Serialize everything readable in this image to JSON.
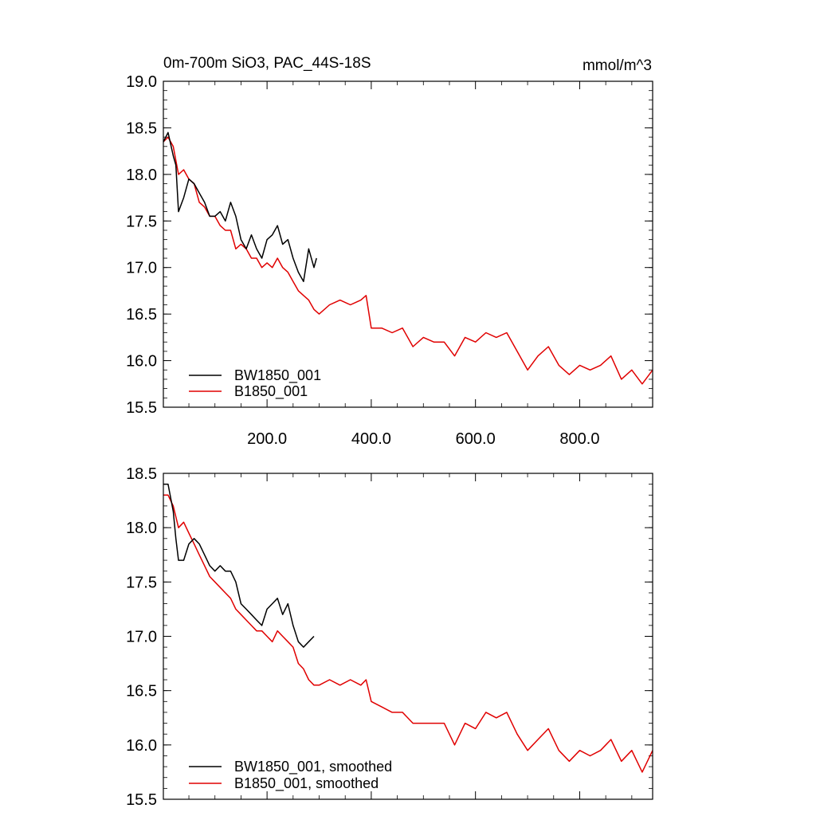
{
  "chart_data": [
    {
      "type": "line",
      "title": "0m-700m SiO3, PAC_44S-18S",
      "units": "mmol/m^3",
      "xlim": [
        1,
        940
      ],
      "ylim": [
        15.5,
        19.0
      ],
      "xticks": [
        200,
        400,
        600,
        800
      ],
      "xtick_labels": [
        "200.0",
        "400.0",
        "600.0",
        "800.0"
      ],
      "yticks": [
        15.5,
        16.0,
        16.5,
        17.0,
        17.5,
        18.0,
        18.5,
        19.0
      ],
      "ytick_labels": [
        "15.5",
        "16.0",
        "16.5",
        "17.0",
        "17.5",
        "18.0",
        "18.5",
        "19.0"
      ],
      "legend_placement": "lower-left",
      "series": [
        {
          "name": "BW1850_001",
          "color": "#000000",
          "x": [
            1,
            10,
            20,
            25,
            30,
            40,
            50,
            60,
            70,
            80,
            90,
            100,
            110,
            120,
            130,
            140,
            150,
            160,
            170,
            180,
            190,
            200,
            210,
            220,
            230,
            240,
            250,
            260,
            270,
            280,
            290,
            295
          ],
          "y": [
            18.35,
            18.45,
            18.2,
            18.1,
            17.6,
            17.75,
            17.95,
            17.9,
            17.8,
            17.7,
            17.55,
            17.55,
            17.6,
            17.5,
            17.7,
            17.55,
            17.3,
            17.2,
            17.35,
            17.2,
            17.1,
            17.3,
            17.35,
            17.45,
            17.25,
            17.3,
            17.1,
            16.95,
            16.85,
            17.2,
            17.0,
            17.1
          ]
        },
        {
          "name": "B1850_001",
          "color": "#e00000",
          "x": [
            1,
            10,
            20,
            30,
            40,
            50,
            60,
            70,
            80,
            90,
            100,
            110,
            120,
            130,
            140,
            150,
            160,
            170,
            180,
            190,
            200,
            210,
            220,
            230,
            240,
            250,
            260,
            270,
            280,
            290,
            300,
            320,
            340,
            360,
            380,
            390,
            400,
            420,
            440,
            460,
            480,
            500,
            520,
            540,
            560,
            580,
            600,
            620,
            640,
            660,
            680,
            700,
            720,
            740,
            760,
            780,
            800,
            820,
            840,
            860,
            880,
            900,
            920,
            940
          ],
          "y": [
            18.35,
            18.4,
            18.3,
            18.0,
            18.05,
            17.95,
            17.9,
            17.7,
            17.65,
            17.55,
            17.55,
            17.45,
            17.4,
            17.4,
            17.2,
            17.25,
            17.2,
            17.1,
            17.1,
            17.0,
            17.05,
            17.0,
            17.1,
            17.0,
            16.95,
            16.85,
            16.75,
            16.7,
            16.65,
            16.55,
            16.5,
            16.6,
            16.65,
            16.6,
            16.65,
            16.7,
            16.35,
            16.35,
            16.3,
            16.35,
            16.15,
            16.25,
            16.2,
            16.2,
            16.05,
            16.25,
            16.2,
            16.3,
            16.25,
            16.3,
            16.1,
            15.9,
            16.05,
            16.15,
            15.95,
            15.85,
            15.95,
            15.9,
            15.95,
            16.05,
            15.8,
            15.9,
            15.75,
            15.9
          ]
        }
      ]
    },
    {
      "type": "line",
      "xlim": [
        1,
        940
      ],
      "ylim": [
        15.5,
        18.5
      ],
      "xticks": [
        200,
        400,
        600,
        800
      ],
      "yticks": [
        15.5,
        16.0,
        16.5,
        17.0,
        17.5,
        18.0,
        18.5
      ],
      "ytick_labels": [
        "15.5",
        "16.0",
        "16.5",
        "17.0",
        "17.5",
        "18.0",
        "18.5"
      ],
      "legend_placement": "lower-left",
      "series": [
        {
          "name": "BW1850_001, smoothed",
          "color": "#000000",
          "x": [
            1,
            10,
            20,
            25,
            30,
            40,
            50,
            60,
            70,
            80,
            90,
            100,
            110,
            120,
            130,
            140,
            150,
            160,
            170,
            180,
            190,
            200,
            210,
            220,
            230,
            240,
            250,
            260,
            270,
            280,
            290
          ],
          "y": [
            18.4,
            18.4,
            18.15,
            17.9,
            17.7,
            17.7,
            17.85,
            17.9,
            17.85,
            17.75,
            17.65,
            17.6,
            17.65,
            17.6,
            17.6,
            17.5,
            17.3,
            17.25,
            17.2,
            17.15,
            17.1,
            17.25,
            17.3,
            17.35,
            17.2,
            17.3,
            17.1,
            16.95,
            16.9,
            16.95,
            17.0
          ]
        },
        {
          "name": "B1850_001, smoothed",
          "color": "#e00000",
          "x": [
            1,
            10,
            20,
            30,
            40,
            50,
            60,
            70,
            80,
            90,
            100,
            110,
            120,
            130,
            140,
            150,
            160,
            170,
            180,
            190,
            200,
            210,
            220,
            230,
            240,
            250,
            260,
            270,
            280,
            290,
            300,
            320,
            340,
            360,
            380,
            390,
            400,
            420,
            440,
            460,
            480,
            500,
            520,
            540,
            560,
            580,
            600,
            620,
            640,
            660,
            680,
            700,
            720,
            740,
            760,
            780,
            800,
            820,
            840,
            860,
            880,
            900,
            920,
            940
          ],
          "y": [
            18.3,
            18.3,
            18.2,
            18.0,
            18.05,
            17.95,
            17.85,
            17.75,
            17.65,
            17.55,
            17.5,
            17.45,
            17.4,
            17.35,
            17.25,
            17.2,
            17.15,
            17.1,
            17.05,
            17.05,
            17.0,
            16.95,
            17.05,
            17.0,
            16.95,
            16.9,
            16.75,
            16.7,
            16.6,
            16.55,
            16.55,
            16.6,
            16.55,
            16.6,
            16.55,
            16.6,
            16.4,
            16.35,
            16.3,
            16.3,
            16.2,
            16.2,
            16.2,
            16.2,
            16.0,
            16.2,
            16.15,
            16.3,
            16.25,
            16.3,
            16.1,
            15.95,
            16.05,
            16.15,
            15.95,
            15.85,
            15.95,
            15.9,
            15.95,
            16.05,
            15.85,
            15.95,
            15.75,
            15.95
          ]
        }
      ]
    }
  ]
}
